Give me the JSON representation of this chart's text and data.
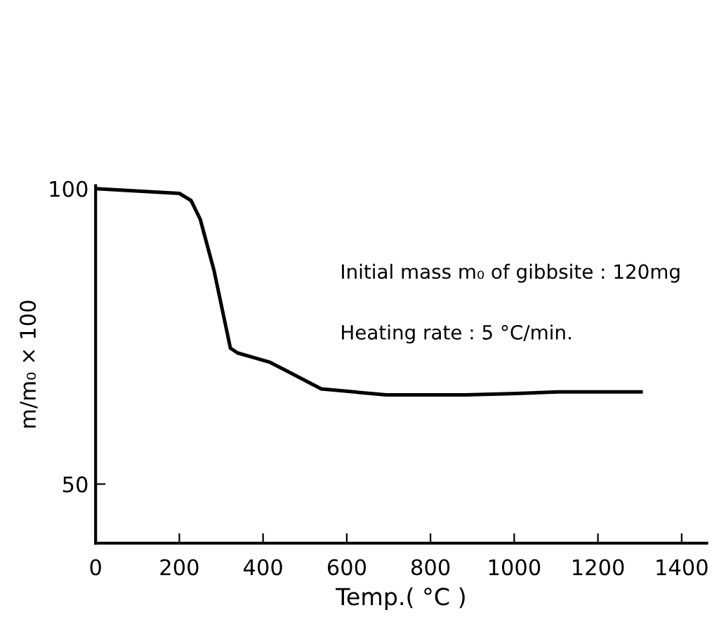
{
  "chart_data": {
    "type": "line",
    "xlabel": "Temp.( °C )",
    "ylabel": "m/m₀ × 100",
    "annotations": [
      "Initial mass m₀ of gibbsite : 120mg",
      "Heating rate : 5 °C/min."
    ],
    "x": [
      0,
      200,
      228,
      250,
      283,
      322,
      339,
      417,
      461,
      539,
      694,
      883,
      994,
      1106,
      1303
    ],
    "series": [
      {
        "color": "#000000",
        "values": [
          100,
          99.2,
          98,
          94.8,
          86.1,
          73,
          72.2,
          70.6,
          69,
          66.1,
          65.1,
          65.1,
          65.3,
          65.6,
          65.6
        ]
      }
    ],
    "xlim": [
      0,
      1460
    ],
    "ylim": [
      40,
      100.5
    ],
    "xticks": [
      0,
      200,
      400,
      600,
      800,
      1000,
      1200,
      1400
    ],
    "yticks": [
      50,
      100
    ],
    "grid": false,
    "legend": false,
    "marker": "none",
    "line_style": "solid"
  }
}
